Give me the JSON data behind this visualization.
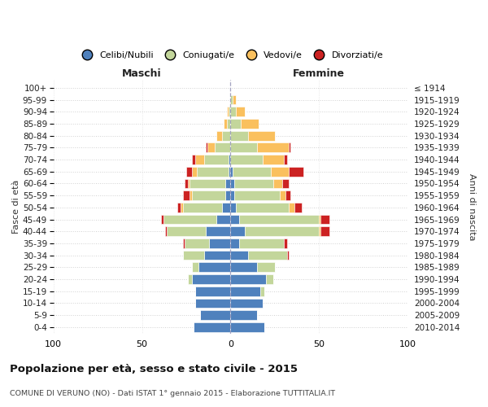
{
  "age_groups": [
    "0-4",
    "5-9",
    "10-14",
    "15-19",
    "20-24",
    "25-29",
    "30-34",
    "35-39",
    "40-44",
    "45-49",
    "50-54",
    "55-59",
    "60-64",
    "65-69",
    "70-74",
    "75-79",
    "80-84",
    "85-89",
    "90-94",
    "95-99",
    "100+"
  ],
  "birth_years": [
    "2010-2014",
    "2005-2009",
    "2000-2004",
    "1995-1999",
    "1990-1994",
    "1985-1989",
    "1980-1984",
    "1975-1979",
    "1970-1974",
    "1965-1969",
    "1960-1964",
    "1955-1959",
    "1950-1954",
    "1945-1949",
    "1940-1944",
    "1935-1939",
    "1930-1934",
    "1925-1929",
    "1920-1924",
    "1915-1919",
    "≤ 1914"
  ],
  "males_celibe": [
    21,
    17,
    20,
    20,
    22,
    18,
    15,
    12,
    14,
    8,
    5,
    3,
    3,
    1,
    1,
    0,
    0,
    0,
    0,
    0,
    0
  ],
  "males_coniugato": [
    0,
    0,
    0,
    0,
    2,
    4,
    12,
    14,
    22,
    30,
    22,
    19,
    20,
    18,
    14,
    9,
    5,
    2,
    1,
    0,
    0
  ],
  "males_vedovo": [
    0,
    0,
    0,
    0,
    0,
    0,
    0,
    0,
    0,
    0,
    1,
    1,
    1,
    3,
    5,
    4,
    3,
    2,
    1,
    0,
    0
  ],
  "males_divorziato": [
    0,
    0,
    0,
    0,
    0,
    0,
    0,
    1,
    1,
    1,
    2,
    4,
    2,
    3,
    2,
    1,
    0,
    0,
    0,
    0,
    0
  ],
  "females_nubile": [
    19,
    15,
    18,
    17,
    20,
    15,
    10,
    5,
    8,
    5,
    3,
    2,
    2,
    1,
    0,
    0,
    0,
    0,
    0,
    0,
    0
  ],
  "females_coniugata": [
    0,
    0,
    0,
    2,
    4,
    10,
    22,
    25,
    42,
    45,
    30,
    26,
    22,
    22,
    18,
    15,
    10,
    6,
    3,
    1,
    0
  ],
  "females_vedova": [
    0,
    0,
    0,
    0,
    0,
    0,
    0,
    0,
    1,
    1,
    3,
    3,
    5,
    10,
    12,
    18,
    15,
    10,
    5,
    2,
    0
  ],
  "females_divorziata": [
    0,
    0,
    0,
    0,
    0,
    0,
    1,
    2,
    5,
    5,
    4,
    3,
    4,
    8,
    2,
    1,
    0,
    0,
    0,
    0,
    0
  ],
  "color_celibe": "#4f81bd",
  "color_coniugato": "#c3d69b",
  "color_vedovo": "#fac05e",
  "color_divorziato": "#cc2222",
  "xlim": 100,
  "title": "Popolazione per età, sesso e stato civile - 2015",
  "subtitle": "COMUNE DI VERUNO (NO) - Dati ISTAT 1° gennaio 2015 - Elaborazione TUTTITALIA.IT",
  "ylabel_left": "Fasce di età",
  "ylabel_right": "Anni di nascita",
  "label_maschi": "Maschi",
  "label_femmine": "Femmine",
  "legend_labels": [
    "Celibi/Nubili",
    "Coniugati/e",
    "Vedovi/e",
    "Divorziati/e"
  ],
  "bg_color": "#ffffff",
  "grid_color": "#cccccc",
  "xticks": [
    -100,
    -50,
    0,
    50,
    100
  ]
}
